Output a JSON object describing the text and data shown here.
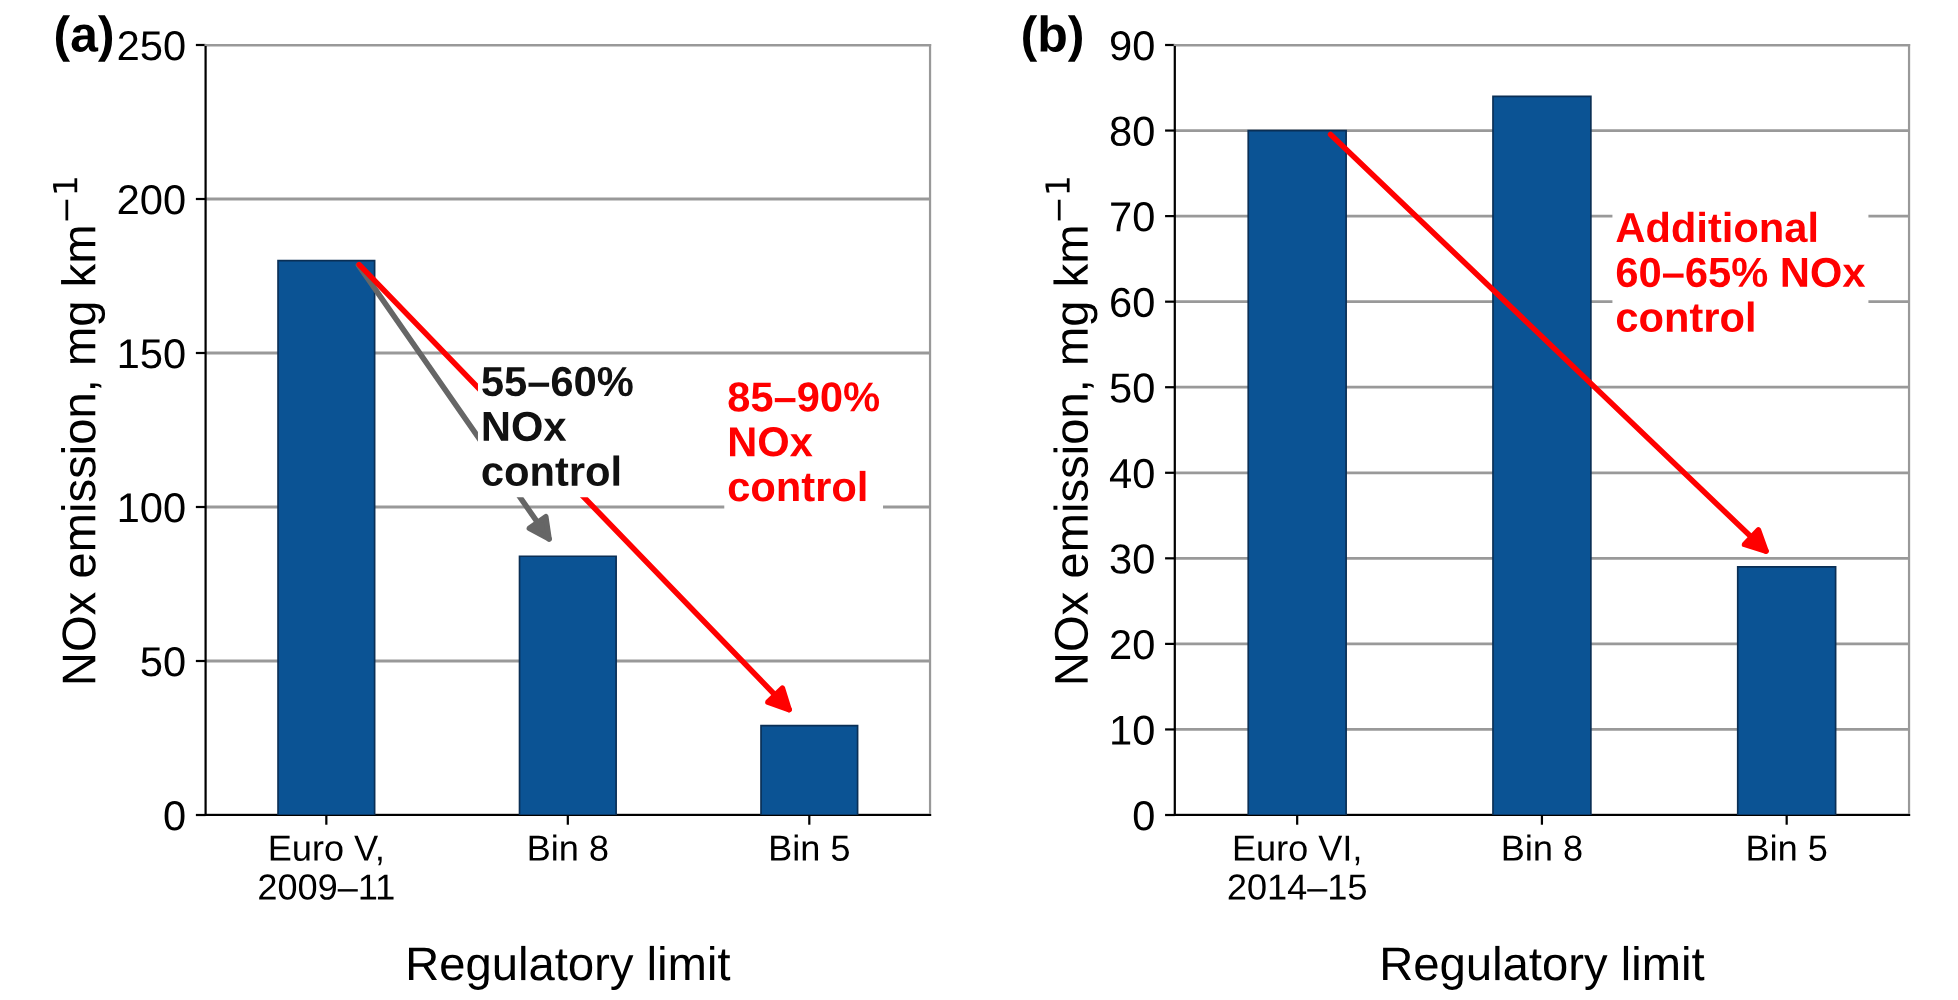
{
  "chart_data": [
    {
      "type": "bar",
      "title": "(a)",
      "xlabel": "Regulatory limit",
      "ylabel": "NOx emission, mg km$^{−1}$",
      "categories": [
        "Euro V,\n2009–11",
        "Bin 8",
        "Bin 5"
      ],
      "values": [
        180,
        84,
        29
      ],
      "color": "#0b5394",
      "ylim": [
        0,
        250
      ],
      "yticks": [
        0,
        50,
        100,
        150,
        200,
        250
      ],
      "grid": "y",
      "annotations": [
        "55–60%\nNOx\ncontrol",
        "85–90%\nNOx\ncontrol"
      ]
    },
    {
      "type": "bar",
      "title": "(b)",
      "xlabel": "Regulatory limit",
      "ylabel": "NOx emission, mg km$^{−1}$",
      "categories": [
        "Euro VI,\n2014–15",
        "Bin 8",
        "Bin 5"
      ],
      "values": [
        80,
        84,
        29
      ],
      "color": "#0b5394",
      "ylim": [
        0,
        90
      ],
      "yticks": [
        0,
        10,
        20,
        30,
        40,
        50,
        60,
        70,
        80,
        90
      ],
      "grid": "y",
      "annotations": [
        "Additional\n60–65% NOx\ncontrol"
      ]
    }
  ]
}
